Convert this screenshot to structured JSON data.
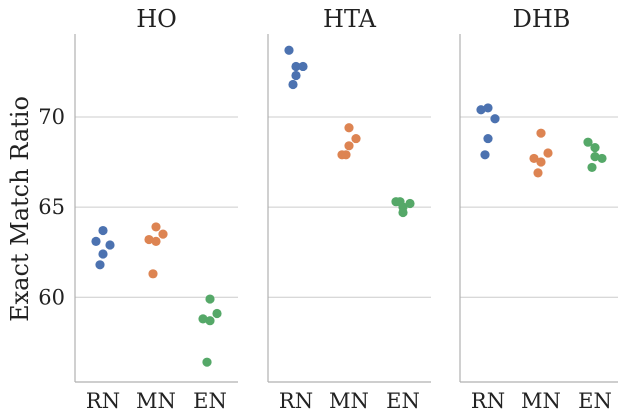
{
  "chart_data": {
    "type": "scatter",
    "ylabel": "Exact Match Ratio",
    "xlabel": "",
    "ylim": [
      55.3,
      74.6
    ],
    "yticks": [
      60,
      65,
      70
    ],
    "grid": true,
    "categories": [
      "RN",
      "MN",
      "EN"
    ],
    "colors": {
      "RN": "#4c72b0",
      "MN": "#dd8452",
      "EN": "#55a868"
    },
    "panels": [
      {
        "title": "HO",
        "points": {
          "RN": [
            63.1,
            63.7,
            62.9,
            62.4,
            61.8
          ],
          "MN": [
            63.2,
            63.9,
            63.5,
            63.1,
            61.3
          ],
          "EN": [
            58.8,
            59.9,
            59.1,
            58.7,
            56.4
          ]
        }
      },
      {
        "title": "HTA",
        "points": {
          "RN": [
            73.7,
            72.8,
            72.8,
            72.3,
            71.8
          ],
          "MN": [
            67.9,
            69.4,
            68.8,
            68.4,
            67.9
          ],
          "EN": [
            65.3,
            65.0,
            65.2,
            64.7,
            65.3
          ]
        }
      },
      {
        "title": "DHB",
        "points": {
          "RN": [
            70.4,
            70.5,
            69.9,
            68.8,
            67.9
          ],
          "MN": [
            67.7,
            69.1,
            68.0,
            67.5,
            66.9
          ],
          "EN": [
            68.6,
            68.3,
            67.7,
            67.8,
            67.2
          ]
        }
      }
    ]
  }
}
